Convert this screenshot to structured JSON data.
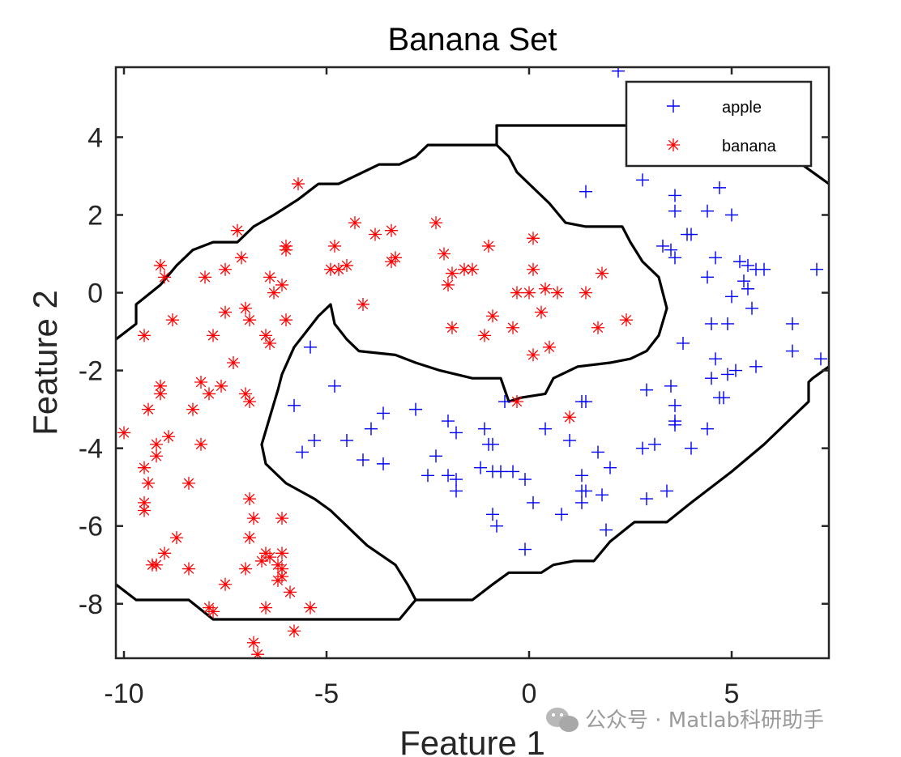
{
  "watermark": "公众号 · Matlab科研助手",
  "chart_data": {
    "type": "scatter",
    "title": "Banana Set",
    "xlabel": "Feature 1",
    "ylabel": "Feature 2",
    "xlim": [
      -10.2,
      7.4
    ],
    "ylim": [
      -9.4,
      5.8
    ],
    "xticks": [
      -10,
      -5,
      0,
      5
    ],
    "yticks": [
      -8,
      -6,
      -4,
      -2,
      0,
      2,
      4
    ],
    "grid": false,
    "legend_position": "top-right",
    "series": [
      {
        "name": "apple",
        "marker": "+",
        "color": "#0000ff",
        "points": [
          [
            2.2,
            5.7
          ],
          [
            1.4,
            2.6
          ],
          [
            2.8,
            2.9
          ],
          [
            3.6,
            2.5
          ],
          [
            4.7,
            2.7
          ],
          [
            3.6,
            2.1
          ],
          [
            4.4,
            2.1
          ],
          [
            5.0,
            2.0
          ],
          [
            3.9,
            1.5
          ],
          [
            4.0,
            1.5
          ],
          [
            3.3,
            1.2
          ],
          [
            3.5,
            1.1
          ],
          [
            3.6,
            0.9
          ],
          [
            4.6,
            0.9
          ],
          [
            5.2,
            0.8
          ],
          [
            5.4,
            0.7
          ],
          [
            5.6,
            0.6
          ],
          [
            5.8,
            0.6
          ],
          [
            7.1,
            0.6
          ],
          [
            5.3,
            0.3
          ],
          [
            4.4,
            0.4
          ],
          [
            5.4,
            0.1
          ],
          [
            5.0,
            -0.1
          ],
          [
            5.5,
            -0.4
          ],
          [
            6.5,
            -0.8
          ],
          [
            4.5,
            -0.8
          ],
          [
            4.9,
            -0.8
          ],
          [
            3.8,
            -1.3
          ],
          [
            6.5,
            -1.5
          ],
          [
            4.6,
            -1.7
          ],
          [
            7.2,
            -1.7
          ],
          [
            5.6,
            -1.9
          ],
          [
            5.1,
            -2.0
          ],
          [
            4.9,
            -2.1
          ],
          [
            4.5,
            -2.2
          ],
          [
            3.5,
            -2.4
          ],
          [
            2.9,
            -2.5
          ],
          [
            4.7,
            -2.7
          ],
          [
            4.8,
            -2.7
          ],
          [
            3.6,
            -2.9
          ],
          [
            1.3,
            -2.8
          ],
          [
            1.4,
            -2.8
          ],
          [
            -0.6,
            -2.8
          ],
          [
            -5.8,
            -2.9
          ],
          [
            -4.8,
            -2.4
          ],
          [
            -5.4,
            -1.4
          ],
          [
            -2.8,
            -3.0
          ],
          [
            -3.6,
            -3.1
          ],
          [
            -3.9,
            -3.5
          ],
          [
            -2.0,
            -3.3
          ],
          [
            -1.8,
            -3.6
          ],
          [
            -1.1,
            -3.5
          ],
          [
            0.4,
            -3.5
          ],
          [
            -5.3,
            -3.8
          ],
          [
            -4.5,
            -3.8
          ],
          [
            -1.0,
            -3.9
          ],
          [
            -0.9,
            -3.9
          ],
          [
            1.0,
            -3.8
          ],
          [
            3.1,
            -3.9
          ],
          [
            3.6,
            -3.4
          ],
          [
            3.6,
            -3.3
          ],
          [
            2.8,
            -4.0
          ],
          [
            4.0,
            -4.0
          ],
          [
            4.4,
            -3.5
          ],
          [
            -5.6,
            -4.1
          ],
          [
            -2.3,
            -4.2
          ],
          [
            -4.1,
            -4.3
          ],
          [
            -3.6,
            -4.4
          ],
          [
            -1.2,
            -4.5
          ],
          [
            -0.9,
            -4.6
          ],
          [
            -0.7,
            -4.6
          ],
          [
            -0.4,
            -4.6
          ],
          [
            -0.1,
            -4.8
          ],
          [
            1.7,
            -4.1
          ],
          [
            2.0,
            -4.5
          ],
          [
            -2.5,
            -4.7
          ],
          [
            -2.0,
            -4.7
          ],
          [
            -1.8,
            -4.8
          ],
          [
            1.3,
            -4.7
          ],
          [
            -1.8,
            -5.1
          ],
          [
            1.3,
            -5.1
          ],
          [
            1.4,
            -5.1
          ],
          [
            1.8,
            -5.2
          ],
          [
            2.9,
            -5.3
          ],
          [
            3.4,
            -5.1
          ],
          [
            0.1,
            -5.4
          ],
          [
            1.3,
            -5.4
          ],
          [
            -0.9,
            -5.7
          ],
          [
            0.8,
            -5.7
          ],
          [
            -0.8,
            -6.0
          ],
          [
            1.9,
            -6.1
          ],
          [
            -0.1,
            -6.6
          ]
        ]
      },
      {
        "name": "banana",
        "marker": "*",
        "color": "#ff0000",
        "points": [
          [
            -5.7,
            2.8
          ],
          [
            -2.3,
            1.8
          ],
          [
            -4.3,
            1.8
          ],
          [
            -7.2,
            1.6
          ],
          [
            -3.8,
            1.5
          ],
          [
            -3.4,
            1.6
          ],
          [
            0.1,
            1.4
          ],
          [
            -4.8,
            1.2
          ],
          [
            -6.0,
            1.1
          ],
          [
            -6.0,
            1.2
          ],
          [
            -1.0,
            1.2
          ],
          [
            -2.1,
            1.0
          ],
          [
            -7.1,
            0.9
          ],
          [
            -9.1,
            0.7
          ],
          [
            -3.3,
            0.9
          ],
          [
            -3.4,
            0.8
          ],
          [
            -4.5,
            0.7
          ],
          [
            -4.9,
            0.6
          ],
          [
            -4.7,
            0.6
          ],
          [
            -7.5,
            0.6
          ],
          [
            -1.6,
            0.6
          ],
          [
            -1.4,
            0.6
          ],
          [
            0.1,
            0.6
          ],
          [
            -1.9,
            0.5
          ],
          [
            1.8,
            0.5
          ],
          [
            -9.0,
            0.4
          ],
          [
            -8.0,
            0.4
          ],
          [
            -6.4,
            0.4
          ],
          [
            -6.1,
            0.2
          ],
          [
            -2.0,
            0.2
          ],
          [
            -6.3,
            0.0
          ],
          [
            0.4,
            0.1
          ],
          [
            -0.3,
            0.0
          ],
          [
            0.0,
            0.0
          ],
          [
            0.7,
            0.0
          ],
          [
            1.4,
            0.0
          ],
          [
            -4.1,
            -0.3
          ],
          [
            -7.0,
            -0.4
          ],
          [
            -7.5,
            -0.5
          ],
          [
            0.3,
            -0.5
          ],
          [
            -0.9,
            -0.6
          ],
          [
            -6.9,
            -0.7
          ],
          [
            -8.8,
            -0.7
          ],
          [
            -6.0,
            -0.7
          ],
          [
            2.4,
            -0.7
          ],
          [
            -1.9,
            -0.9
          ],
          [
            1.7,
            -0.9
          ],
          [
            -0.4,
            -0.9
          ],
          [
            -1.1,
            -1.1
          ],
          [
            -9.5,
            -1.1
          ],
          [
            -7.8,
            -1.1
          ],
          [
            -6.5,
            -1.1
          ],
          [
            -6.4,
            -1.3
          ],
          [
            0.5,
            -1.4
          ],
          [
            0.1,
            -1.6
          ],
          [
            -7.3,
            -1.8
          ],
          [
            -8.1,
            -2.3
          ],
          [
            -7.6,
            -2.4
          ],
          [
            -9.1,
            -2.4
          ],
          [
            -9.1,
            -2.6
          ],
          [
            -7.9,
            -2.6
          ],
          [
            -7.0,
            -2.6
          ],
          [
            -6.9,
            -2.8
          ],
          [
            -9.4,
            -3.0
          ],
          [
            -8.3,
            -3.0
          ],
          [
            -0.3,
            -2.8
          ],
          [
            1.0,
            -3.2
          ],
          [
            -10.0,
            -3.6
          ],
          [
            -8.9,
            -3.7
          ],
          [
            -9.2,
            -3.9
          ],
          [
            -8.1,
            -3.9
          ],
          [
            -9.2,
            -4.2
          ],
          [
            -9.5,
            -4.5
          ],
          [
            -9.4,
            -4.9
          ],
          [
            -8.4,
            -4.9
          ],
          [
            -9.5,
            -5.4
          ],
          [
            -9.5,
            -5.6
          ],
          [
            -6.9,
            -5.3
          ],
          [
            -6.1,
            -5.8
          ],
          [
            -6.8,
            -5.8
          ],
          [
            -8.7,
            -6.3
          ],
          [
            -6.9,
            -6.3
          ],
          [
            -9.0,
            -6.7
          ],
          [
            -6.5,
            -6.7
          ],
          [
            -6.1,
            -6.7
          ],
          [
            -6.4,
            -6.8
          ],
          [
            -6.6,
            -6.9
          ],
          [
            -9.3,
            -7.0
          ],
          [
            -9.2,
            -7.0
          ],
          [
            -8.4,
            -7.1
          ],
          [
            -7.0,
            -7.1
          ],
          [
            -6.2,
            -7.0
          ],
          [
            -6.1,
            -7.1
          ],
          [
            -6.2,
            -7.4
          ],
          [
            -6.1,
            -7.3
          ],
          [
            -7.5,
            -7.5
          ],
          [
            -5.9,
            -7.7
          ],
          [
            -7.9,
            -8.1
          ],
          [
            -7.8,
            -8.2
          ],
          [
            -6.5,
            -8.1
          ],
          [
            -5.4,
            -8.1
          ],
          [
            -5.8,
            -8.7
          ],
          [
            -6.8,
            -9.0
          ],
          [
            -6.7,
            -9.3
          ]
        ]
      }
    ],
    "decision_boundary": [
      [
        [
          -10.2,
          -1.2
        ],
        [
          -9.7,
          -0.8
        ],
        [
          -9.7,
          -0.3
        ],
        [
          -9.1,
          0.2
        ],
        [
          -8.7,
          0.7
        ],
        [
          -8.3,
          1.1
        ],
        [
          -7.8,
          1.3
        ],
        [
          -7.2,
          1.3
        ],
        [
          -6.8,
          1.7
        ],
        [
          -6.3,
          2.0
        ],
        [
          -5.7,
          2.4
        ],
        [
          -5.2,
          2.8
        ],
        [
          -4.7,
          2.8
        ],
        [
          -4.3,
          3.0
        ],
        [
          -3.7,
          3.3
        ],
        [
          -3.2,
          3.3
        ],
        [
          -2.8,
          3.5
        ],
        [
          -2.5,
          3.8
        ],
        [
          -1.5,
          3.8
        ],
        [
          -0.8,
          3.8
        ],
        [
          -0.8,
          4.3
        ],
        [
          0.1,
          4.3
        ],
        [
          1.8,
          4.3
        ],
        [
          3.5,
          4.3
        ],
        [
          5.0,
          4.1
        ],
        [
          6.6,
          3.4
        ],
        [
          7.4,
          2.8
        ]
      ],
      [
        [
          -0.8,
          3.8
        ],
        [
          -0.5,
          3.5
        ],
        [
          -0.3,
          3.1
        ],
        [
          0.0,
          2.8
        ],
        [
          0.5,
          2.3
        ],
        [
          0.9,
          1.8
        ],
        [
          1.4,
          1.7
        ],
        [
          2.3,
          1.7
        ],
        [
          2.5,
          1.3
        ],
        [
          2.8,
          0.8
        ],
        [
          3.2,
          0.4
        ],
        [
          3.4,
          -0.4
        ],
        [
          3.2,
          -1.1
        ],
        [
          2.9,
          -1.5
        ],
        [
          2.5,
          -1.7
        ],
        [
          2.0,
          -1.8
        ],
        [
          1.2,
          -1.9
        ],
        [
          0.6,
          -2.2
        ],
        [
          0.4,
          -2.6
        ],
        [
          -0.2,
          -2.7
        ],
        [
          -0.5,
          -2.8
        ],
        [
          -0.7,
          -2.2
        ],
        [
          -1.4,
          -2.2
        ],
        [
          -2.2,
          -2.0
        ],
        [
          -2.8,
          -1.8
        ],
        [
          -3.3,
          -1.6
        ],
        [
          -4.2,
          -1.5
        ],
        [
          -4.5,
          -1.2
        ],
        [
          -4.8,
          -0.8
        ],
        [
          -4.9,
          -0.3
        ],
        [
          -5.2,
          -0.6
        ],
        [
          -5.5,
          -1.0
        ],
        [
          -5.8,
          -1.4
        ],
        [
          -6.1,
          -2.1
        ],
        [
          -6.2,
          -2.5
        ],
        [
          -6.4,
          -3.2
        ],
        [
          -6.6,
          -3.9
        ],
        [
          -6.5,
          -4.4
        ],
        [
          -6.0,
          -4.9
        ],
        [
          -5.3,
          -5.3
        ],
        [
          -4.9,
          -5.6
        ],
        [
          -4.5,
          -6.0
        ],
        [
          -4.0,
          -6.5
        ],
        [
          -3.3,
          -7.0
        ],
        [
          -3.0,
          -7.5
        ],
        [
          -2.8,
          -7.9
        ],
        [
          -2.0,
          -7.9
        ],
        [
          -1.4,
          -7.9
        ],
        [
          -0.9,
          -7.5
        ],
        [
          -0.5,
          -7.2
        ],
        [
          0.3,
          -7.2
        ],
        [
          0.6,
          -7.0
        ],
        [
          1.1,
          -6.9
        ],
        [
          1.6,
          -6.9
        ],
        [
          2.0,
          -6.4
        ],
        [
          2.6,
          -5.9
        ],
        [
          3.4,
          -5.9
        ],
        [
          4.0,
          -5.4
        ],
        [
          5.0,
          -4.6
        ],
        [
          5.8,
          -3.9
        ],
        [
          6.4,
          -3.3
        ],
        [
          6.9,
          -2.8
        ],
        [
          6.9,
          -2.3
        ],
        [
          7.0,
          -2.2
        ],
        [
          7.4,
          -1.9
        ]
      ],
      [
        [
          -2.8,
          -7.9
        ],
        [
          -3.2,
          -8.4
        ],
        [
          -5.0,
          -8.4
        ],
        [
          -7.2,
          -8.4
        ],
        [
          -7.8,
          -8.4
        ],
        [
          -8.4,
          -7.9
        ],
        [
          -9.7,
          -7.9
        ],
        [
          -10.2,
          -7.5
        ]
      ]
    ]
  }
}
